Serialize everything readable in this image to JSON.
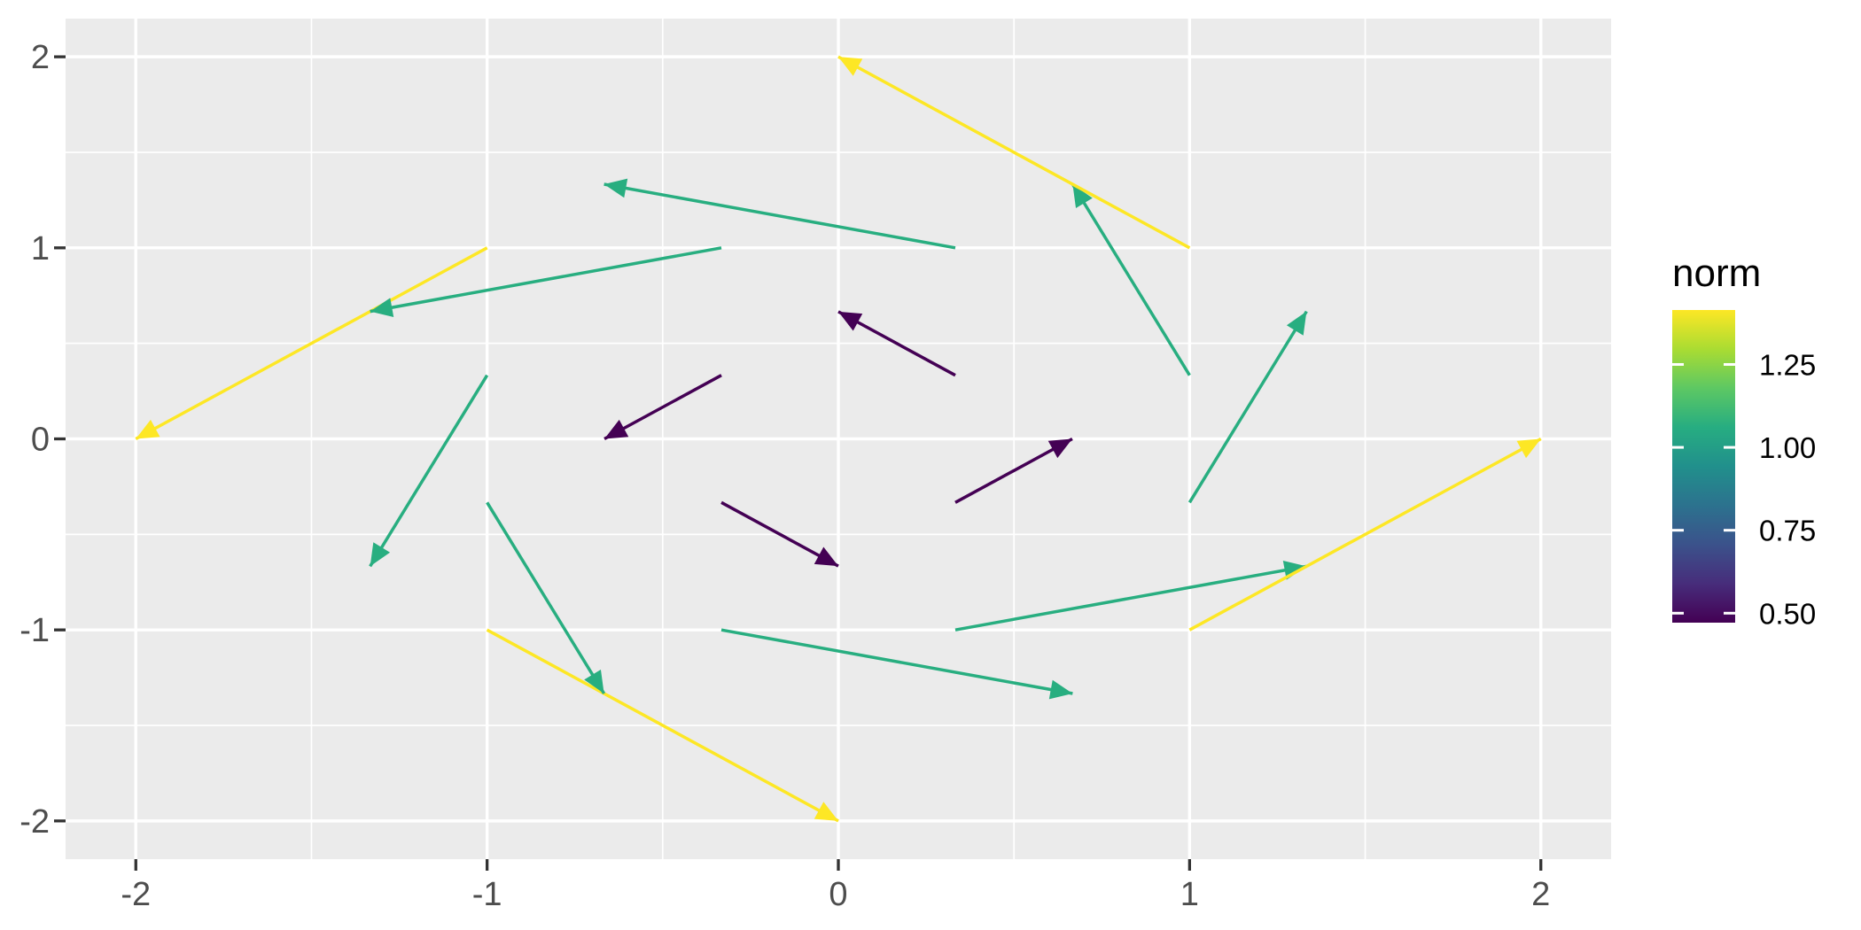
{
  "chart_data": {
    "type": "vector_field",
    "title": "",
    "xlabel": "",
    "ylabel": "",
    "xlim": [
      -2.2,
      2.2
    ],
    "ylim": [
      -2.2,
      2.2
    ],
    "grid": true,
    "panel_background": "#EBEBEB",
    "grid_color": "#FFFFFF",
    "tick_color": "#333333",
    "axis_text_color": "#4D4D4D",
    "x_ticks": {
      "values": [
        -2,
        -1,
        0,
        1,
        2
      ],
      "labels": [
        "-2",
        "-1",
        "0",
        "1",
        "2"
      ]
    },
    "y_ticks": {
      "values": [
        -2,
        -1,
        0,
        1,
        2
      ],
      "labels": [
        "-2",
        "-1",
        "0",
        "1",
        "2"
      ]
    },
    "x_minor": [
      -1.5,
      -0.5,
      0.5,
      1.5
    ],
    "y_minor": [
      -1.5,
      -0.5,
      0.5,
      1.5
    ],
    "arrows": [
      {
        "x": -1,
        "y": -1,
        "u": 1,
        "v": -1,
        "norm": 1.414,
        "color": "#FDE725"
      },
      {
        "x": -1,
        "y": -0.333,
        "u": 0.333,
        "v": -1,
        "norm": 1.054,
        "color": "#28AE80"
      },
      {
        "x": -1,
        "y": 0.333,
        "u": -0.333,
        "v": -1,
        "norm": 1.054,
        "color": "#28AE80"
      },
      {
        "x": -1,
        "y": 1,
        "u": -1,
        "v": -1,
        "norm": 1.414,
        "color": "#FDE725"
      },
      {
        "x": -0.333,
        "y": -1,
        "u": 1,
        "v": -0.333,
        "norm": 1.054,
        "color": "#28AE80"
      },
      {
        "x": -0.333,
        "y": -0.333,
        "u": 0.333,
        "v": -0.333,
        "norm": 0.471,
        "color": "#440154"
      },
      {
        "x": -0.333,
        "y": 0.333,
        "u": -0.333,
        "v": -0.333,
        "norm": 0.471,
        "color": "#440154"
      },
      {
        "x": -0.333,
        "y": 1,
        "u": -1,
        "v": -0.333,
        "norm": 1.054,
        "color": "#28AE80"
      },
      {
        "x": 0.333,
        "y": -1,
        "u": 1,
        "v": 0.333,
        "norm": 1.054,
        "color": "#28AE80"
      },
      {
        "x": 0.333,
        "y": -0.333,
        "u": 0.333,
        "v": 0.333,
        "norm": 0.471,
        "color": "#440154"
      },
      {
        "x": 0.333,
        "y": 0.333,
        "u": -0.333,
        "v": 0.333,
        "norm": 0.471,
        "color": "#440154"
      },
      {
        "x": 0.333,
        "y": 1,
        "u": -1,
        "v": 0.333,
        "norm": 1.054,
        "color": "#28AE80"
      },
      {
        "x": 1,
        "y": -1,
        "u": 1,
        "v": 1,
        "norm": 1.414,
        "color": "#FDE725"
      },
      {
        "x": 1,
        "y": -0.333,
        "u": 0.333,
        "v": 1,
        "norm": 1.054,
        "color": "#28AE80"
      },
      {
        "x": 1,
        "y": 0.333,
        "u": -0.333,
        "v": 1,
        "norm": 1.054,
        "color": "#28AE80"
      },
      {
        "x": 1,
        "y": 1,
        "u": -1,
        "v": 1,
        "norm": 1.414,
        "color": "#FDE725"
      }
    ],
    "legend": {
      "title": "norm",
      "position": "right",
      "colormap": "viridis",
      "limits": [
        0.4714,
        1.4142
      ],
      "tick_values": [
        0.5,
        0.75,
        1.0,
        1.25
      ],
      "tick_labels": [
        "0.50",
        "0.75",
        "1.00",
        "1.25"
      ],
      "viridis_stops": [
        [
          0,
          "#440154"
        ],
        [
          0.125,
          "#472D7B"
        ],
        [
          0.25,
          "#3B528B"
        ],
        [
          0.375,
          "#2C728E"
        ],
        [
          0.5,
          "#21908C"
        ],
        [
          0.625,
          "#27AD81"
        ],
        [
          0.75,
          "#5DC863"
        ],
        [
          0.875,
          "#AADC32"
        ],
        [
          1,
          "#FDE725"
        ]
      ]
    }
  }
}
